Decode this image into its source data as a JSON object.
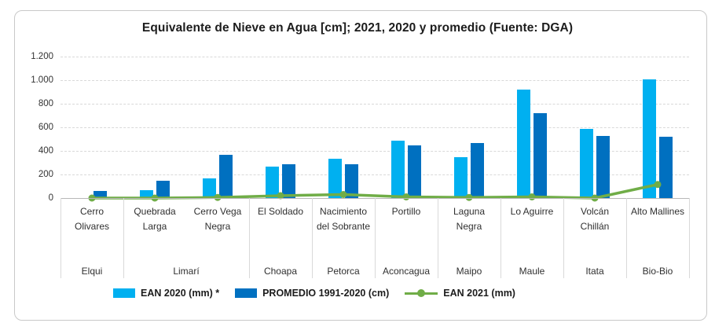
{
  "chart_data": {
    "type": "bar",
    "title": "Equivalente de Nieve en Agua [cm]; 2021, 2020 y promedio (Fuente: DGA)",
    "categories": [
      "Cerro Olivares",
      "Quebrada Larga",
      "Cerro Vega Negra",
      "El Soldado",
      "Nacimiento del Sobrante",
      "Portillo",
      "Laguna Negra",
      "Lo Aguirre",
      "Volcán Chillán",
      "Alto Mallines"
    ],
    "basin_groups": [
      {
        "label": "Elqui",
        "span": 1
      },
      {
        "label": "Limarí",
        "span": 2
      },
      {
        "label": "Choapa",
        "span": 1
      },
      {
        "label": "Petorca",
        "span": 1
      },
      {
        "label": "Aconcagua",
        "span": 1
      },
      {
        "label": "Maipo",
        "span": 1
      },
      {
        "label": "Maule",
        "span": 1
      },
      {
        "label": "Itata",
        "span": 1
      },
      {
        "label": "Bio-Bio",
        "span": 1
      }
    ],
    "series": [
      {
        "name": "EAN 2020 (mm) *",
        "kind": "bar",
        "color": "#00B0F0",
        "values": [
          0,
          70,
          165,
          270,
          335,
          485,
          345,
          920,
          585,
          1010
        ]
      },
      {
        "name": "PROMEDIO 1991-2020 (cm)",
        "kind": "bar",
        "color": "#0070C0",
        "values": [
          60,
          150,
          370,
          290,
          290,
          445,
          470,
          720,
          530,
          520
        ]
      },
      {
        "name": "EAN 2021 (mm)",
        "kind": "line",
        "color": "#70AD47",
        "values": [
          0,
          0,
          5,
          20,
          30,
          10,
          5,
          10,
          0,
          115
        ]
      }
    ],
    "ylim": [
      0,
      1200
    ],
    "yticks": [
      "0",
      "200",
      "400",
      "600",
      "800",
      "1.000",
      "1.200"
    ],
    "grid": "horizontal-dashed",
    "legend_position": "bottom",
    "colors": {
      "gridline": "#d9d9d9",
      "axis": "#b7b7b7",
      "frame_border": "#c9c9c9",
      "text": "#303030"
    }
  }
}
